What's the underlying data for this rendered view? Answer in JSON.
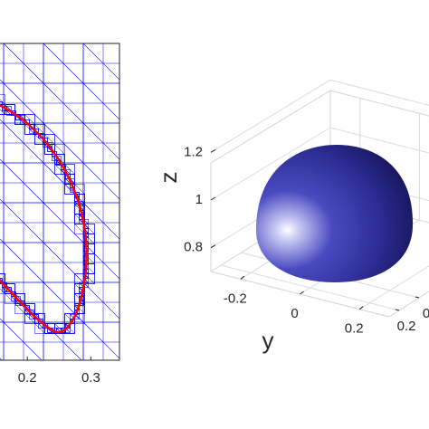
{
  "chart_data": [
    {
      "type": "mesh",
      "xlim": [
        0.1,
        0.345
      ],
      "xticks": [
        0.2,
        0.3
      ],
      "line_color": "#0000ff",
      "curve_color": "#ff0000"
    },
    {
      "type": "surface",
      "zlabel": "z",
      "ylabel": "y",
      "zlim": [
        0.7,
        1.3
      ],
      "zticks": [
        0.8,
        1,
        1.2
      ],
      "ylim": [
        -0.3,
        0.3
      ],
      "yticks": [
        -0.2,
        0,
        0.2
      ],
      "xlim": [
        -0.1,
        0.3
      ],
      "xticks": [
        0,
        0.2
      ],
      "color": "#3a3ab0"
    }
  ]
}
